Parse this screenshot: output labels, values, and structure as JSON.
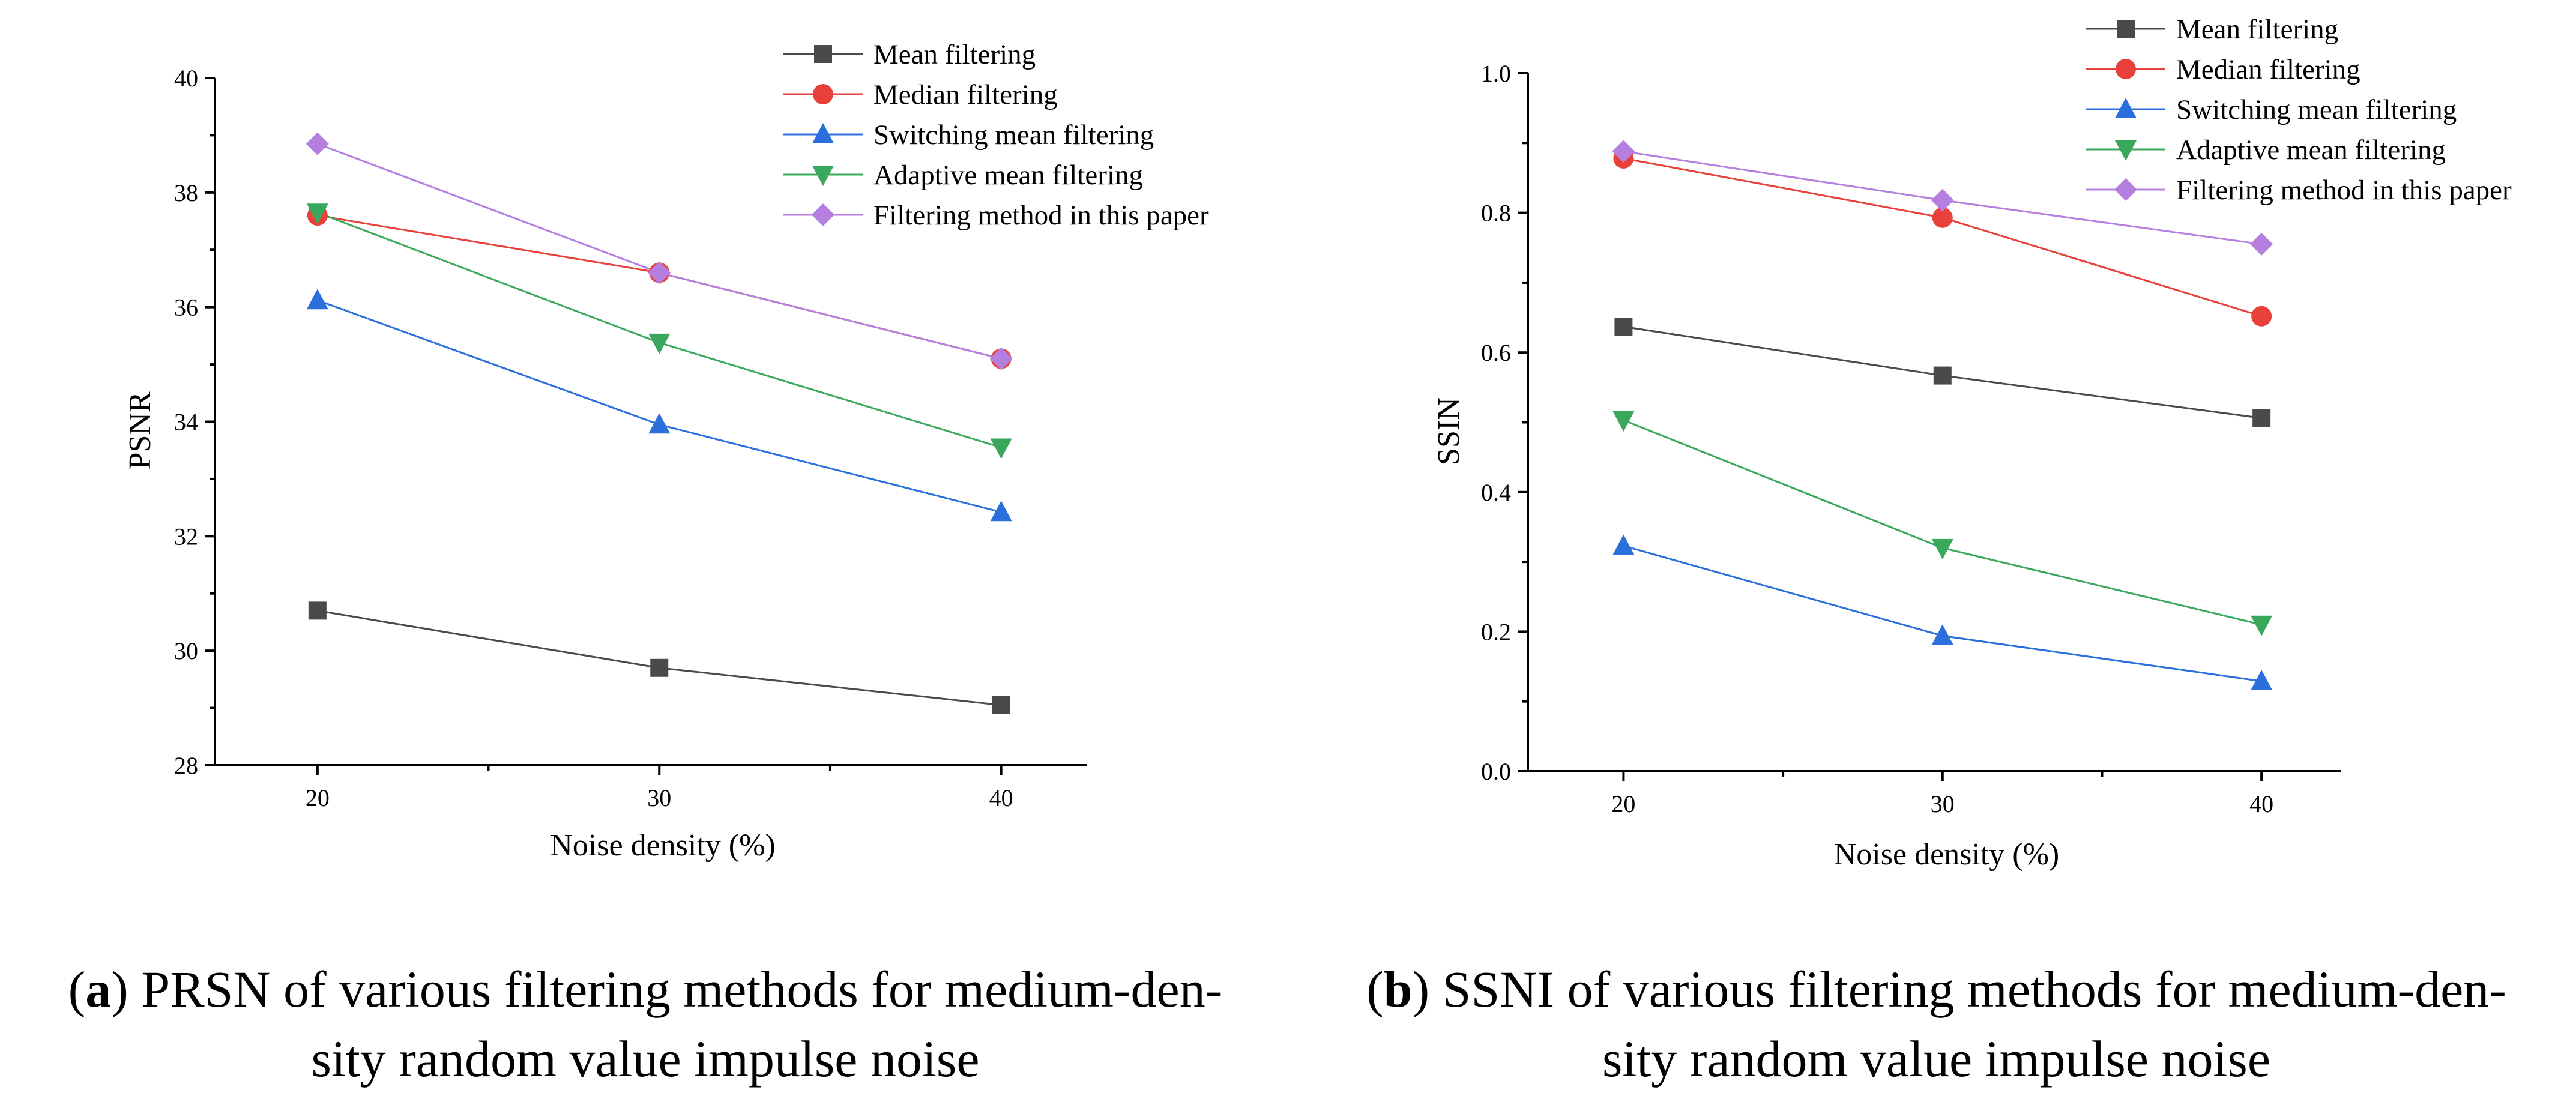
{
  "chart_data": [
    {
      "id": "a",
      "type": "line",
      "title": "",
      "xlabel": "Noise density (%)",
      "ylabel": "PSNR",
      "x": [
        20,
        30,
        40
      ],
      "x_ticks": [
        "20",
        "30",
        "40"
      ],
      "xlim": [
        17,
        42.5
      ],
      "ylim": [
        28,
        40
      ],
      "y_ticks": [
        "28",
        "30",
        "32",
        "34",
        "36",
        "38",
        "40"
      ],
      "legend_position": "top-right",
      "series": [
        {
          "name": "Mean filtering",
          "color": "#4a4a4a",
          "marker": "square",
          "values": [
            30.7,
            29.7,
            29.05
          ]
        },
        {
          "name": "Median filtering",
          "color": "#e8403a",
          "marker": "circle",
          "values": [
            37.6,
            36.6,
            35.1
          ]
        },
        {
          "name": "Switching mean filtering",
          "color": "#2a6fdc",
          "marker": "triangle-up",
          "values": [
            36.12,
            33.95,
            32.42
          ]
        },
        {
          "name": "Adaptive mean filtering",
          "color": "#3aa85c",
          "marker": "triangle-down",
          "values": [
            37.65,
            35.38,
            33.55
          ]
        },
        {
          "name": "Filtering method in this paper",
          "color": "#b57fe0",
          "marker": "diamond",
          "values": [
            38.85,
            36.6,
            35.1
          ]
        }
      ]
    },
    {
      "id": "b",
      "type": "line",
      "title": "",
      "xlabel": "Noise density (%)",
      "ylabel": "SSIN",
      "x": [
        20,
        30,
        40
      ],
      "x_ticks": [
        "20",
        "30",
        "40"
      ],
      "xlim": [
        17,
        42.5
      ],
      "ylim": [
        0,
        1.0
      ],
      "y_ticks": [
        "0.0",
        "0.2",
        "0.4",
        "0.6",
        "0.8",
        "1.0"
      ],
      "legend_position": "top-right",
      "series": [
        {
          "name": "Mean filtering",
          "color": "#4a4a4a",
          "marker": "square",
          "values": [
            0.637,
            0.567,
            0.506
          ]
        },
        {
          "name": "Median filtering",
          "color": "#e8403a",
          "marker": "circle",
          "values": [
            0.878,
            0.793,
            0.652
          ]
        },
        {
          "name": "Switching mean filtering",
          "color": "#2a6fdc",
          "marker": "triangle-up",
          "values": [
            0.323,
            0.194,
            0.129
          ]
        },
        {
          "name": "Adaptive mean filtering",
          "color": "#3aa85c",
          "marker": "triangle-down",
          "values": [
            0.503,
            0.32,
            0.21
          ]
        },
        {
          "name": "Filtering method in this paper",
          "color": "#b57fe0",
          "marker": "diamond",
          "values": [
            0.888,
            0.818,
            0.755
          ]
        }
      ]
    }
  ],
  "captions": [
    {
      "label": "a",
      "line1": ") PRSN of various filtering methods for medium-den-",
      "line2": "sity random value impulse noise"
    },
    {
      "label": "b",
      "line1": ") SSNI of various filtering methods for medium-den-",
      "line2": "sity random value impulse noise"
    }
  ]
}
